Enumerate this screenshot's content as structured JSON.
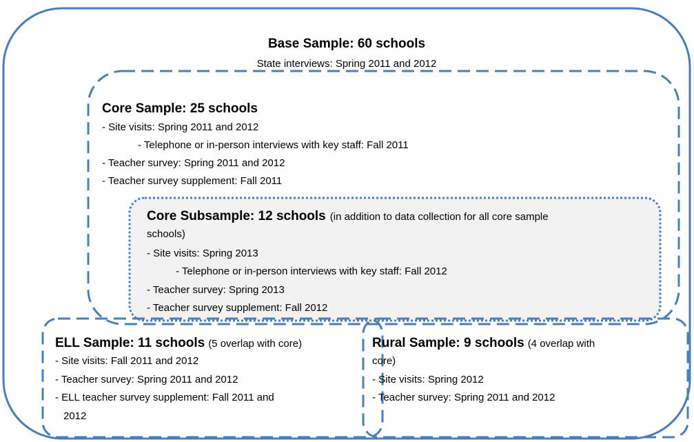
{
  "base": {
    "title": "Base Sample: 60 schools",
    "subtitle": "State interviews: Spring 2011 and 2012"
  },
  "core": {
    "title": "Core Sample: 25 schools",
    "items": [
      "- Site visits: Spring 2011 and 2012",
      "- Telephone or in-person interviews with key staff: Fall 2011",
      "- Teacher survey: Spring 2011 and 2012",
      "- Teacher survey supplement: Fall 2011"
    ]
  },
  "subsample": {
    "title": "Core Subsample: 12 schools",
    "note_lines": [
      "(in addition to data collection for all core sample",
      "schools)"
    ],
    "items": [
      "- Site visits: Spring 2013",
      "- Telephone or in-person interviews with key staff: Fall 2012",
      "- Teacher survey: Spring 2013",
      "- Teacher survey supplement: Fall 2012"
    ]
  },
  "ell": {
    "title": "ELL Sample: 11 schools",
    "note": "(5 overlap with core)",
    "items": [
      "- Site visits: Fall 2011 and 2012",
      "- Teacher survey: Spring 2011 and 2012",
      "- ELL teacher survey supplement: Fall 2011 and",
      "2012"
    ]
  },
  "rural": {
    "title": "Rural Sample: 9 schools",
    "note_lines": [
      "(4 overlap with",
      "core)"
    ],
    "items": [
      "- Site visits: Spring 2012",
      "- Teacher survey: Spring 2011 and 2012"
    ]
  }
}
